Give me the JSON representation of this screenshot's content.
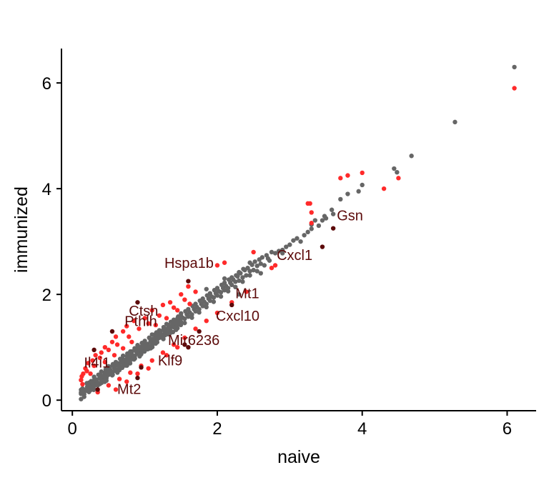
{
  "chart_data": {
    "type": "scatter",
    "title": "",
    "xlabel": "naive",
    "ylabel": "immunized",
    "xlim": [
      -0.15,
      6.4
    ],
    "ylim": [
      -0.2,
      6.65
    ],
    "x_ticks": [
      0,
      2,
      4,
      6
    ],
    "y_ticks": [
      0,
      2,
      4,
      6
    ],
    "grid": false,
    "legend": "none",
    "colors": {
      "not_significant": "#666666",
      "significant": "#ff2a2a",
      "labeled": "#5c0a0a",
      "axis": "#000000"
    },
    "series": [
      {
        "class": "not_significant",
        "points": [
          [
            6.1,
            6.3
          ],
          [
            5.28,
            5.26
          ],
          [
            4.68,
            4.62
          ],
          [
            4.44,
            4.38
          ],
          [
            4.48,
            4.31
          ],
          [
            4.0,
            4.07
          ],
          [
            3.95,
            3.95
          ],
          [
            3.7,
            3.8
          ],
          [
            3.58,
            3.6
          ],
          [
            3.48,
            3.48
          ],
          [
            3.6,
            3.52
          ],
          [
            3.5,
            3.44
          ],
          [
            3.45,
            3.4
          ],
          [
            3.3,
            3.24
          ],
          [
            3.35,
            3.4
          ],
          [
            3.25,
            3.18
          ],
          [
            3.2,
            3.12
          ],
          [
            3.1,
            3.06
          ],
          [
            3.0,
            2.94
          ],
          [
            3.05,
            3.02
          ],
          [
            2.95,
            2.9
          ],
          [
            2.9,
            2.84
          ],
          [
            2.85,
            2.82
          ],
          [
            2.8,
            2.78
          ],
          [
            2.7,
            2.68
          ],
          [
            2.72,
            2.64
          ],
          [
            2.6,
            2.58
          ],
          [
            2.55,
            2.54
          ],
          [
            2.5,
            2.46
          ],
          [
            2.45,
            2.44
          ],
          [
            2.4,
            2.36
          ],
          [
            2.35,
            2.32
          ],
          [
            2.3,
            2.26
          ],
          [
            2.25,
            2.24
          ],
          [
            2.2,
            2.18
          ],
          [
            2.15,
            2.12
          ],
          [
            2.1,
            2.08
          ],
          [
            2.05,
            2.04
          ],
          [
            2.0,
            1.98
          ],
          [
            1.95,
            1.94
          ],
          [
            1.9,
            1.88
          ],
          [
            1.85,
            1.82
          ],
          [
            1.8,
            1.78
          ],
          [
            1.75,
            1.72
          ],
          [
            1.7,
            1.68
          ],
          [
            1.65,
            1.62
          ],
          [
            1.6,
            1.58
          ],
          [
            1.55,
            1.54
          ],
          [
            1.5,
            1.48
          ],
          [
            1.45,
            1.42
          ],
          [
            1.4,
            1.38
          ],
          [
            1.35,
            1.33
          ],
          [
            1.3,
            1.28
          ],
          [
            1.25,
            1.23
          ],
          [
            1.2,
            1.18
          ],
          [
            1.15,
            1.12
          ],
          [
            1.1,
            1.08
          ],
          [
            1.05,
            1.03
          ],
          [
            1.0,
            0.98
          ],
          [
            0.95,
            0.93
          ],
          [
            0.9,
            0.88
          ],
          [
            0.85,
            0.83
          ],
          [
            0.8,
            0.78
          ],
          [
            0.75,
            0.73
          ],
          [
            0.7,
            0.68
          ],
          [
            0.65,
            0.63
          ],
          [
            0.6,
            0.58
          ],
          [
            0.55,
            0.53
          ],
          [
            0.5,
            0.48
          ],
          [
            0.45,
            0.43
          ],
          [
            0.4,
            0.38
          ],
          [
            0.35,
            0.33
          ],
          [
            0.3,
            0.28
          ],
          [
            0.25,
            0.23
          ],
          [
            0.2,
            0.18
          ],
          [
            0.15,
            0.14
          ],
          [
            0.12,
            0.12
          ],
          [
            0.18,
            0.2
          ],
          [
            0.22,
            0.26
          ],
          [
            0.28,
            0.32
          ],
          [
            0.32,
            0.38
          ],
          [
            0.38,
            0.42
          ],
          [
            0.42,
            0.46
          ],
          [
            0.48,
            0.52
          ],
          [
            0.52,
            0.58
          ],
          [
            0.58,
            0.62
          ],
          [
            0.62,
            0.66
          ],
          [
            0.68,
            0.72
          ],
          [
            0.72,
            0.76
          ],
          [
            0.78,
            0.82
          ],
          [
            0.82,
            0.86
          ],
          [
            0.88,
            0.92
          ],
          [
            0.92,
            0.96
          ],
          [
            0.98,
            1.02
          ],
          [
            1.02,
            1.06
          ],
          [
            1.08,
            1.12
          ],
          [
            1.12,
            1.16
          ],
          [
            1.18,
            1.22
          ],
          [
            1.22,
            1.26
          ],
          [
            1.28,
            1.32
          ],
          [
            1.32,
            1.36
          ],
          [
            1.38,
            1.42
          ],
          [
            1.42,
            1.46
          ],
          [
            1.48,
            1.52
          ],
          [
            1.52,
            1.56
          ],
          [
            1.58,
            1.62
          ],
          [
            1.62,
            1.66
          ],
          [
            1.68,
            1.72
          ],
          [
            1.72,
            1.76
          ],
          [
            1.78,
            1.82
          ],
          [
            1.82,
            1.86
          ],
          [
            1.88,
            1.92
          ],
          [
            1.92,
            1.96
          ],
          [
            1.98,
            2.02
          ],
          [
            2.02,
            2.06
          ],
          [
            2.08,
            2.12
          ],
          [
            2.12,
            2.16
          ],
          [
            2.18,
            2.22
          ],
          [
            2.22,
            2.28
          ],
          [
            2.28,
            2.34
          ],
          [
            2.32,
            2.4
          ],
          [
            2.38,
            2.46
          ],
          [
            2.42,
            2.5
          ],
          [
            2.48,
            2.56
          ],
          [
            2.52,
            2.62
          ],
          [
            2.58,
            2.66
          ],
          [
            2.62,
            2.7
          ],
          [
            2.68,
            2.74
          ],
          [
            2.75,
            2.8
          ],
          [
            2.65,
            2.55
          ],
          [
            2.55,
            2.44
          ],
          [
            2.45,
            2.36
          ],
          [
            2.35,
            2.24
          ],
          [
            2.25,
            2.14
          ],
          [
            2.15,
            2.06
          ],
          [
            2.05,
            1.96
          ],
          [
            1.95,
            1.86
          ],
          [
            1.85,
            1.76
          ],
          [
            1.75,
            1.66
          ],
          [
            1.65,
            1.56
          ],
          [
            1.55,
            1.46
          ],
          [
            1.45,
            1.36
          ],
          [
            1.35,
            1.27
          ],
          [
            1.25,
            1.17
          ],
          [
            1.15,
            1.07
          ],
          [
            1.05,
            0.97
          ],
          [
            0.95,
            0.87
          ],
          [
            0.85,
            0.77
          ],
          [
            0.75,
            0.67
          ],
          [
            0.65,
            0.57
          ],
          [
            0.55,
            0.47
          ],
          [
            0.45,
            0.37
          ],
          [
            0.35,
            0.28
          ],
          [
            0.25,
            0.19
          ],
          [
            0.16,
            0.12
          ],
          [
            0.14,
            0.22
          ],
          [
            0.2,
            0.32
          ],
          [
            0.26,
            0.36
          ],
          [
            0.3,
            0.44
          ],
          [
            0.36,
            0.48
          ],
          [
            0.4,
            0.54
          ],
          [
            0.46,
            0.58
          ],
          [
            0.5,
            0.64
          ],
          [
            0.56,
            0.68
          ],
          [
            0.6,
            0.72
          ],
          [
            0.66,
            0.78
          ],
          [
            0.7,
            0.84
          ],
          [
            0.76,
            0.88
          ],
          [
            0.8,
            0.92
          ],
          [
            0.86,
            0.98
          ],
          [
            0.9,
            1.04
          ],
          [
            0.96,
            1.08
          ],
          [
            1.0,
            1.12
          ],
          [
            1.06,
            1.18
          ],
          [
            1.1,
            1.24
          ],
          [
            1.16,
            1.28
          ],
          [
            1.2,
            1.32
          ],
          [
            1.26,
            1.38
          ],
          [
            1.3,
            1.44
          ],
          [
            1.36,
            1.48
          ],
          [
            1.4,
            1.52
          ],
          [
            1.46,
            1.58
          ],
          [
            1.5,
            1.64
          ],
          [
            1.56,
            1.68
          ],
          [
            1.6,
            1.72
          ],
          [
            1.66,
            1.78
          ],
          [
            1.7,
            1.82
          ],
          [
            1.76,
            1.88
          ],
          [
            1.8,
            1.92
          ],
          [
            1.86,
            1.98
          ],
          [
            1.9,
            2.02
          ],
          [
            1.96,
            2.08
          ],
          [
            2.0,
            2.12
          ],
          [
            2.06,
            2.18
          ],
          [
            2.1,
            2.22
          ],
          [
            2.16,
            2.28
          ],
          [
            2.2,
            2.32
          ],
          [
            2.26,
            2.36
          ],
          [
            2.3,
            2.42
          ],
          [
            2.36,
            2.48
          ],
          [
            1.85,
            2.1
          ],
          [
            2.3,
            2.0
          ],
          [
            2.9,
            2.78
          ],
          [
            3.15,
            3.0
          ],
          [
            3.3,
            3.32
          ],
          [
            3.8,
            3.9
          ],
          [
            2.6,
            2.4
          ],
          [
            2.45,
            2.6
          ],
          [
            3.4,
            3.3
          ],
          [
            2.1,
            2.3
          ]
        ]
      },
      {
        "class": "significant",
        "points": [
          [
            6.1,
            5.9
          ],
          [
            4.5,
            4.2
          ],
          [
            4.3,
            4.0
          ],
          [
            4.0,
            4.3
          ],
          [
            3.8,
            4.25
          ],
          [
            3.7,
            4.2
          ],
          [
            3.28,
            3.72
          ],
          [
            3.25,
            3.72
          ],
          [
            3.3,
            3.55
          ],
          [
            3.3,
            3.35
          ],
          [
            2.5,
            2.8
          ],
          [
            2.8,
            2.55
          ],
          [
            2.75,
            2.5
          ],
          [
            2.1,
            2.6
          ],
          [
            2.0,
            2.55
          ],
          [
            1.6,
            2.15
          ],
          [
            1.5,
            2.0
          ],
          [
            1.35,
            1.85
          ],
          [
            1.25,
            1.8
          ],
          [
            1.1,
            1.7
          ],
          [
            1.0,
            1.55
          ],
          [
            0.85,
            1.5
          ],
          [
            0.75,
            1.4
          ],
          [
            0.7,
            1.3
          ],
          [
            0.6,
            1.2
          ],
          [
            0.55,
            1.1
          ],
          [
            0.45,
            1.0
          ],
          [
            0.4,
            0.9
          ],
          [
            0.32,
            0.85
          ],
          [
            0.28,
            0.75
          ],
          [
            0.22,
            0.7
          ],
          [
            0.18,
            0.6
          ],
          [
            0.15,
            0.5
          ],
          [
            0.13,
            0.45
          ],
          [
            0.12,
            0.38
          ],
          [
            0.14,
            0.3
          ],
          [
            0.2,
            0.55
          ],
          [
            0.3,
            0.65
          ],
          [
            0.38,
            0.8
          ],
          [
            0.5,
            0.95
          ],
          [
            0.62,
            1.05
          ],
          [
            0.78,
            1.2
          ],
          [
            0.92,
            1.35
          ],
          [
            1.05,
            1.45
          ],
          [
            1.2,
            1.6
          ],
          [
            1.4,
            1.75
          ],
          [
            1.55,
            1.9
          ],
          [
            1.7,
            2.05
          ],
          [
            0.35,
            0.15
          ],
          [
            0.5,
            0.28
          ],
          [
            0.65,
            0.4
          ],
          [
            0.8,
            0.52
          ],
          [
            0.95,
            0.65
          ],
          [
            1.1,
            0.75
          ],
          [
            1.25,
            0.9
          ],
          [
            1.4,
            1.05
          ],
          [
            1.55,
            1.18
          ],
          [
            1.7,
            1.35
          ],
          [
            1.85,
            1.5
          ],
          [
            2.0,
            1.65
          ],
          [
            2.2,
            1.85
          ],
          [
            2.4,
            2.05
          ],
          [
            0.6,
            0.2
          ],
          [
            0.75,
            0.35
          ],
          [
            0.9,
            0.5
          ],
          [
            1.05,
            0.6
          ],
          [
            1.3,
            0.85
          ],
          [
            1.45,
            1.0
          ],
          [
            0.25,
            0.5
          ],
          [
            0.45,
            0.72
          ],
          [
            0.58,
            0.85
          ],
          [
            0.7,
            0.98
          ],
          [
            0.82,
            1.1
          ],
          [
            1.15,
            1.42
          ],
          [
            1.3,
            1.55
          ],
          [
            1.45,
            1.7
          ],
          [
            1.62,
            1.82
          ]
        ]
      },
      {
        "class": "labeled",
        "points": [
          [
            3.6,
            3.25
          ],
          [
            3.45,
            2.9
          ],
          [
            2.2,
            1.8
          ],
          [
            1.6,
            2.25
          ],
          [
            1.75,
            1.3
          ],
          [
            1.6,
            1.0
          ],
          [
            0.9,
            1.85
          ],
          [
            0.55,
            1.3
          ],
          [
            0.3,
            0.95
          ],
          [
            0.9,
            0.42
          ],
          [
            0.35,
            0.2
          ],
          [
            1.55,
            1.05
          ],
          [
            0.95,
            0.62
          ]
        ]
      }
    ],
    "annotations": [
      {
        "text": "Gsn",
        "x": 3.65,
        "y": 3.4
      },
      {
        "text": "Cxcl1",
        "x": 2.82,
        "y": 2.65
      },
      {
        "text": "Hspa1b",
        "x": 1.27,
        "y": 2.5
      },
      {
        "text": "Mt1",
        "x": 2.25,
        "y": 1.93
      },
      {
        "text": "Cxcl10",
        "x": 1.98,
        "y": 1.5
      },
      {
        "text": "Ctsh",
        "x": 0.78,
        "y": 1.6
      },
      {
        "text": "Pthlh",
        "x": 0.72,
        "y": 1.4
      },
      {
        "text": "Mir6236",
        "x": 1.32,
        "y": 1.04
      },
      {
        "text": "Klf9",
        "x": 1.18,
        "y": 0.66
      },
      {
        "text": "Il4i1",
        "x": 0.16,
        "y": 0.62
      },
      {
        "text": "Mt2",
        "x": 0.62,
        "y": 0.12
      }
    ]
  }
}
